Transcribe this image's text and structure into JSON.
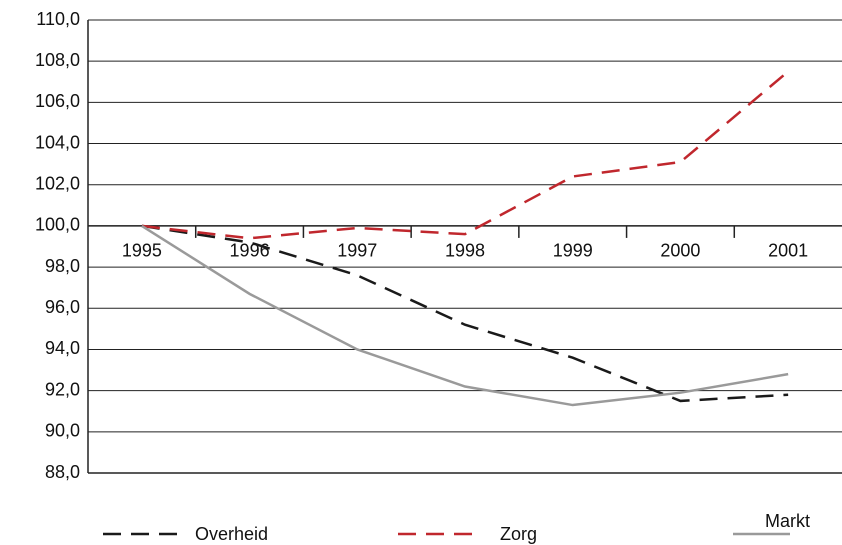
{
  "chart_data": {
    "type": "line",
    "categories": [
      "1995",
      "1996",
      "1997",
      "1998",
      "1999",
      "2000",
      "2001"
    ],
    "series": [
      {
        "name": "Overheid",
        "color": "#1a1a1a",
        "style": "dashed",
        "values": [
          100,
          99.2,
          97.6,
          95.2,
          93.6,
          91.5,
          91.8
        ]
      },
      {
        "name": "Zorg",
        "color": "#c0272d",
        "style": "dashed",
        "values": [
          100,
          99.4,
          99.9,
          99.6,
          102.4,
          103.1,
          107.5
        ]
      },
      {
        "name": "Markt",
        "color": "#9a9a9a",
        "style": "solid",
        "values": [
          100,
          96.7,
          94.0,
          92.2,
          91.3,
          91.9,
          92.8
        ]
      }
    ],
    "ylim": [
      88,
      110
    ],
    "yticks": [
      {
        "value": 88,
        "label": "88,0"
      },
      {
        "value": 90,
        "label": "90,0"
      },
      {
        "value": 92,
        "label": "92,0"
      },
      {
        "value": 94,
        "label": "94,0"
      },
      {
        "value": 96,
        "label": "96,0"
      },
      {
        "value": 98,
        "label": "98,0"
      },
      {
        "value": 100,
        "label": "100,0"
      },
      {
        "value": 102,
        "label": "102,0"
      },
      {
        "value": 104,
        "label": "104,0"
      },
      {
        "value": 106,
        "label": "106,0"
      },
      {
        "value": 108,
        "label": "108,0"
      },
      {
        "value": 110,
        "label": "110,0"
      }
    ],
    "category_axis_at": 100,
    "grid": true,
    "legend": "bottom"
  }
}
